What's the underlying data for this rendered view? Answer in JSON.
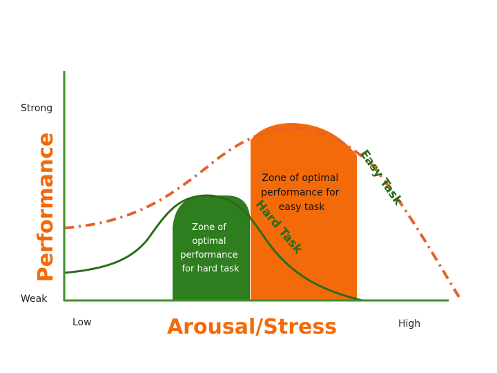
{
  "y_axis": {
    "title": "Performance",
    "top_label": "Strong",
    "bottom_label": "Weak"
  },
  "x_axis": {
    "title": "Arousal/Stress",
    "left_label": "Low",
    "right_label": "High"
  },
  "easy_zone": {
    "lines": [
      "Zone of optimal",
      "performance for",
      "easy task"
    ]
  },
  "hard_zone": {
    "lines": [
      "Zone of",
      "optimal",
      "performance",
      "for hard task"
    ]
  },
  "curves": {
    "easy": "Easy Task",
    "hard": "Hard Task"
  }
}
